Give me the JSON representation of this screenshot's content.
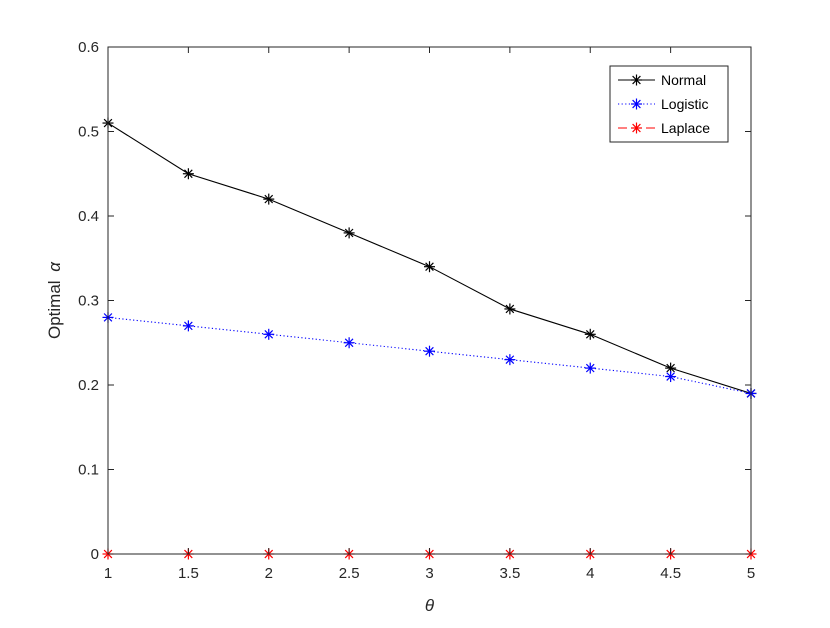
{
  "chart_data": {
    "type": "line",
    "x": [
      1,
      1.5,
      2,
      2.5,
      3,
      3.5,
      4,
      4.5,
      5
    ],
    "xticks": [
      "1",
      "1.5",
      "2",
      "2.5",
      "3",
      "3.5",
      "4",
      "4.5",
      "5"
    ],
    "yticks": [
      "0",
      "0.1",
      "0.2",
      "0.3",
      "0.4",
      "0.5",
      "0.6"
    ],
    "xlabel": "θ",
    "ylabel_text": "Optimal",
    "ylabel_symbol": "α",
    "xlim": [
      1,
      5
    ],
    "ylim": [
      0,
      0.6
    ],
    "grid": false,
    "legend_position": "top-right",
    "series": [
      {
        "name": "Normal",
        "color": "#000000",
        "line_style": "solid",
        "marker": "asterisk",
        "values": [
          0.51,
          0.45,
          0.42,
          0.38,
          0.34,
          0.29,
          0.26,
          0.22,
          0.19
        ]
      },
      {
        "name": "Logistic",
        "color": "#0000ff",
        "line_style": "dotted",
        "marker": "asterisk",
        "values": [
          0.28,
          0.27,
          0.26,
          0.25,
          0.24,
          0.23,
          0.22,
          0.21,
          0.19
        ]
      },
      {
        "name": "Laplace",
        "color": "#ff0000",
        "line_style": "dashed",
        "marker": "asterisk",
        "values": [
          0,
          0,
          0,
          0,
          0,
          0,
          0,
          0,
          0
        ]
      }
    ]
  }
}
